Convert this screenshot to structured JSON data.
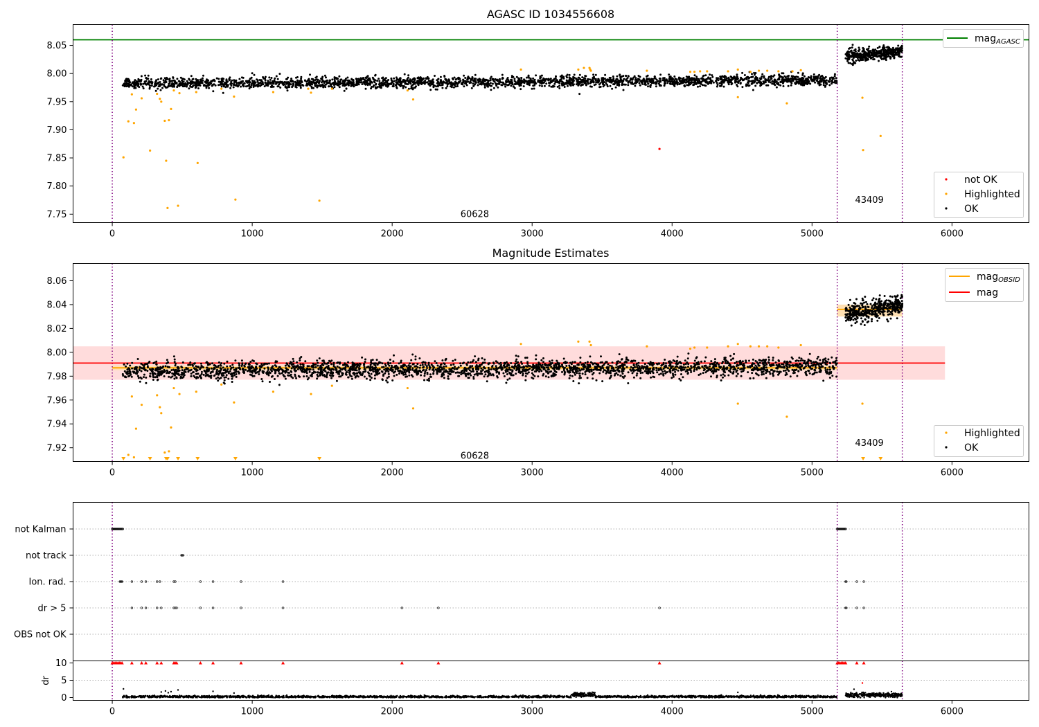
{
  "colors": {
    "ok": "#000000",
    "highlighted": "#ffa500",
    "not_ok": "#ff0000",
    "agasc_line": "#008000",
    "obsid_line": "#ffa500",
    "mag_line": "#ff0000",
    "mag_band": "#ffdcdc",
    "obsid_band": "#ffe0b3",
    "obs_boundary": "#800080"
  },
  "chart_data": [
    {
      "type": "scatter",
      "title": "AGASC ID 1034556608",
      "xlim": [
        -280,
        6550
      ],
      "ylim": [
        7.735,
        8.087
      ],
      "xticks": [
        0,
        1000,
        2000,
        3000,
        4000,
        5000,
        6000
      ],
      "yticks": [
        7.75,
        7.8,
        7.85,
        7.9,
        7.95,
        8.0,
        8.05
      ],
      "obs_boundaries": [
        0,
        5180,
        5645
      ],
      "obsids": [
        {
          "label": "60628",
          "x": 2590,
          "y": 7.735
        },
        {
          "label": "43409",
          "x": 5410,
          "y": 7.76
        }
      ],
      "reference_line": {
        "name": "mag_AGASC",
        "y": 8.06,
        "x_range": [
          -280,
          6550
        ]
      },
      "series": [
        {
          "name": "OK",
          "segments": [
            {
              "x_start": 75,
              "x_end": 5180,
              "y_center": 7.985,
              "y_spread": 0.009,
              "trend": 0.006,
              "n": 2600
            },
            {
              "x_start": 5240,
              "x_end": 5645,
              "y_center": 8.035,
              "y_spread": 0.01,
              "trend": 0.01,
              "n": 400
            }
          ]
        },
        {
          "name": "Highlighted",
          "points": [
            [
              80,
              7.851
            ],
            [
              115,
              7.915
            ],
            [
              140,
              7.963
            ],
            [
              155,
              7.912
            ],
            [
              170,
              7.936
            ],
            [
              210,
              7.956
            ],
            [
              270,
              7.863
            ],
            [
              320,
              7.964
            ],
            [
              340,
              7.955
            ],
            [
              350,
              7.95
            ],
            [
              375,
              7.916
            ],
            [
              385,
              7.845
            ],
            [
              395,
              7.761
            ],
            [
              405,
              7.917
            ],
            [
              420,
              7.937
            ],
            [
              440,
              7.97
            ],
            [
              470,
              7.765
            ],
            [
              480,
              7.965
            ],
            [
              600,
              7.967
            ],
            [
              610,
              7.841
            ],
            [
              780,
              7.973
            ],
            [
              870,
              7.959
            ],
            [
              880,
              7.776
            ],
            [
              1150,
              7.967
            ],
            [
              1400,
              7.973
            ],
            [
              1420,
              7.966
            ],
            [
              1480,
              7.774
            ],
            [
              1570,
              7.973
            ],
            [
              2110,
              7.97
            ],
            [
              2150,
              7.954
            ],
            [
              2920,
              8.007
            ],
            [
              3330,
              8.007
            ],
            [
              3370,
              8.01
            ],
            [
              3410,
              8.01
            ],
            [
              3415,
              8.007
            ],
            [
              3420,
              8.005
            ],
            [
              3820,
              8.005
            ],
            [
              4130,
              8.003
            ],
            [
              4160,
              8.003
            ],
            [
              4200,
              8.004
            ],
            [
              4250,
              8.004
            ],
            [
              4400,
              8.004
            ],
            [
              4470,
              8.007
            ],
            [
              4470,
              7.958
            ],
            [
              4560,
              8.003
            ],
            [
              4620,
              8.005
            ],
            [
              4680,
              8.005
            ],
            [
              4760,
              8.004
            ],
            [
              4820,
              7.947
            ],
            [
              4860,
              8.004
            ],
            [
              4920,
              8.006
            ],
            [
              5360,
              7.957
            ],
            [
              5365,
              7.864
            ],
            [
              5490,
              7.889
            ]
          ]
        },
        {
          "name": "not OK",
          "points": [
            [
              3910,
              7.866
            ]
          ]
        }
      ],
      "legend": {
        "position": "lower right",
        "entries": [
          "not OK",
          "Highlighted",
          "OK"
        ]
      },
      "legend_top": {
        "position": "upper right",
        "entries": [
          "mag_AGASC"
        ],
        "label_main": "mag",
        "label_sub": "AGASC"
      }
    },
    {
      "type": "scatter",
      "title": "Magnitude Estimates",
      "xlim": [
        -280,
        6550
      ],
      "ylim": [
        7.9085,
        8.0745
      ],
      "xticks": [
        0,
        1000,
        2000,
        3000,
        4000,
        5000,
        6000
      ],
      "yticks": [
        7.92,
        7.94,
        7.96,
        7.98,
        8.0,
        8.02,
        8.04,
        8.06
      ],
      "obs_boundaries": [
        0,
        5180,
        5645
      ],
      "obsids": [
        {
          "label": "60628",
          "x": 2590,
          "y": 7.913
        },
        {
          "label": "43409",
          "x": 5410,
          "y": 7.924
        }
      ],
      "mag_line": {
        "y": 7.991,
        "band": [
          7.977,
          8.005
        ],
        "x_range": [
          -280,
          5950
        ]
      },
      "obsid_mag": [
        {
          "x_range": [
            0,
            5180
          ],
          "y": 7.987,
          "band": [
            7.985,
            7.989
          ]
        },
        {
          "x_range": [
            5180,
            5645
          ],
          "y": 8.036,
          "band": [
            8.03,
            8.04
          ]
        }
      ],
      "series": [
        {
          "name": "OK",
          "segments": [
            {
              "x_start": 75,
              "x_end": 5180,
              "y_center": 7.986,
              "y_spread": 0.007,
              "trend": 0.004,
              "n": 2600
            },
            {
              "x_start": 5240,
              "x_end": 5645,
              "y_center": 8.036,
              "y_spread": 0.008,
              "trend": 0.008,
              "n": 400
            }
          ]
        },
        {
          "name": "Highlighted",
          "points": [
            [
              115,
              7.914
            ],
            [
              140,
              7.963
            ],
            [
              155,
              7.912
            ],
            [
              170,
              7.936
            ],
            [
              210,
              7.956
            ],
            [
              320,
              7.964
            ],
            [
              340,
              7.954
            ],
            [
              350,
              7.949
            ],
            [
              375,
              7.916
            ],
            [
              405,
              7.917
            ],
            [
              420,
              7.937
            ],
            [
              440,
              7.97
            ],
            [
              480,
              7.965
            ],
            [
              600,
              7.967
            ],
            [
              780,
              7.973
            ],
            [
              870,
              7.958
            ],
            [
              1150,
              7.967
            ],
            [
              1420,
              7.965
            ],
            [
              1570,
              7.972
            ],
            [
              2110,
              7.97
            ],
            [
              2150,
              7.953
            ],
            [
              2920,
              8.007
            ],
            [
              3330,
              8.009
            ],
            [
              3410,
              8.009
            ],
            [
              3420,
              8.006
            ],
            [
              3820,
              8.005
            ],
            [
              4130,
              8.003
            ],
            [
              4160,
              8.004
            ],
            [
              4250,
              8.004
            ],
            [
              4400,
              8.005
            ],
            [
              4470,
              8.007
            ],
            [
              4470,
              7.957
            ],
            [
              4560,
              8.005
            ],
            [
              4620,
              8.005
            ],
            [
              4680,
              8.005
            ],
            [
              4760,
              8.004
            ],
            [
              4820,
              7.946
            ],
            [
              4920,
              8.006
            ],
            [
              5360,
              7.957
            ]
          ]
        },
        {
          "name": "Highlighted (off scale)",
          "x": [
            80,
            270,
            385,
            395,
            470,
            610,
            880,
            1480,
            5365,
            5490
          ]
        }
      ],
      "legend": {
        "position": "lower right",
        "entries": [
          "Highlighted",
          "OK"
        ]
      },
      "legend_top": {
        "position": "upper right",
        "entries": [
          "mag_OBSID",
          "mag"
        ],
        "label_main": "mag",
        "label_sub": "OBSID",
        "label_mag": "mag"
      }
    },
    {
      "type": "scatter",
      "title": "",
      "xlim": [
        -280,
        6550
      ],
      "xticks": [
        0,
        1000,
        2000,
        3000,
        4000,
        5000,
        6000
      ],
      "obs_boundaries": [
        0,
        5180,
        5645
      ],
      "flags": [
        {
          "label": "not Kalman",
          "x": [
            0,
            5,
            10,
            15,
            20,
            25,
            30,
            35,
            40,
            45,
            50,
            55,
            60,
            65,
            70,
            75,
            5180,
            5185,
            5190,
            5195,
            5200,
            5205,
            5210,
            5215,
            5220,
            5225,
            5230,
            5235,
            5240
          ]
        },
        {
          "label": "not track",
          "x": [
            495,
            500,
            505
          ]
        },
        {
          "label": "Ion. rad.",
          "x": [
            55,
            60,
            65,
            70,
            140,
            210,
            240,
            320,
            340,
            440,
            450,
            630,
            720,
            920,
            1220,
            5240,
            5245,
            5320,
            5370
          ]
        },
        {
          "label": "dr > 5",
          "x": [
            140,
            210,
            240,
            320,
            350,
            440,
            450,
            460,
            630,
            720,
            920,
            1220,
            2070,
            2330,
            3910,
            5240,
            5245,
            5320,
            5370
          ]
        },
        {
          "label": "OBS not OK",
          "x": []
        }
      ],
      "dr": {
        "ylabel": "dr",
        "yticks": [
          0,
          5,
          10
        ],
        "ylim": [
          -0.8,
          10.6
        ],
        "clipped_x": [
          0,
          10,
          20,
          30,
          40,
          50,
          60,
          70,
          140,
          210,
          240,
          320,
          350,
          440,
          450,
          460,
          630,
          720,
          920,
          1220,
          2070,
          2330,
          3910,
          5180,
          5190,
          5200,
          5210,
          5220,
          5230,
          5240,
          5320,
          5370
        ],
        "outliers": [
          [
            80,
            2.5
          ],
          [
            350,
            1.6
          ],
          [
            380,
            1.9
          ],
          [
            400,
            1.4
          ],
          [
            420,
            1.7
          ],
          [
            470,
            2.2
          ],
          [
            720,
            1.8
          ],
          [
            870,
            1.3
          ],
          [
            4470,
            1.5
          ],
          [
            5360,
            4.2
          ],
          [
            5300,
            2.4
          ]
        ]
      }
    }
  ]
}
